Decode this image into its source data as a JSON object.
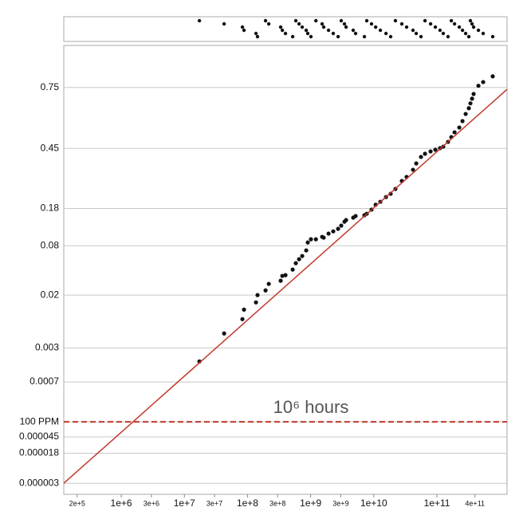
{
  "chart_data": {
    "type": "scatter",
    "xscale": "log",
    "yscale": "probit",
    "grid": true,
    "top_dotplot": true,
    "annotation": "10⁶ hours",
    "xlim": [
      123000,
      1290000000000
    ],
    "ylim": [
      1.5e-06,
      0.89
    ],
    "xticks": [
      {
        "value": 200000,
        "label": "2e+5"
      },
      {
        "value": 1000000,
        "label": "1e+6"
      },
      {
        "value": 3000000,
        "label": "3e+6"
      },
      {
        "value": 10000000,
        "label": "1e+7"
      },
      {
        "value": 30000000,
        "label": "3e+7"
      },
      {
        "value": 100000000,
        "label": "1e+8"
      },
      {
        "value": 300000000,
        "label": "3e+8"
      },
      {
        "value": 1000000000,
        "label": "1e+9"
      },
      {
        "value": 3000000000,
        "label": "3e+9"
      },
      {
        "value": 10000000000,
        "label": "1e+10"
      },
      {
        "value": 100000000000,
        "label": "1e+11"
      },
      {
        "value": 400000000000,
        "label": "4e+11"
      }
    ],
    "yticks": [
      0.75,
      0.45,
      0.18,
      0.08,
      0.02,
      0.003,
      0.0007,
      {
        "value": 0.0001,
        "label": "100 PPM"
      },
      4.5e-05,
      1.8e-05,
      3e-06
    ],
    "reference_lines": [
      {
        "value": 0.0001,
        "color": "#c0392b",
        "dashed": true
      }
    ],
    "series": [
      {
        "type": "scatter",
        "color": "#111111",
        "x": [
          17300000,
          42600000,
          83000000,
          88000000,
          136000000,
          144000000,
          193000000,
          217000000,
          335000000,
          356000000,
          399000000,
          519000000,
          582000000,
          655000000,
          735000000,
          850000000,
          900000000,
          1010000000,
          1210000000,
          1520000000,
          1610000000,
          1920000000,
          2280000000,
          2720000000,
          3050000000,
          3430000000,
          3640000000,
          4720000000,
          5150000000,
          7100000000,
          7740000000,
          9200000000,
          10700000000,
          12700000000,
          15600000000,
          18500000000,
          22000000000,
          27800000000,
          33100000000,
          41800000000,
          47000000000,
          55900000000,
          64700000000,
          79300000000,
          94400000000,
          112000000000,
          126000000000,
          150000000000,
          169000000000,
          190000000000,
          226000000000,
          254000000000,
          285000000000,
          320000000000,
          339000000000,
          360000000000,
          381000000000,
          454000000000,
          540000000000,
          765000000000
        ],
        "values": [
          0.00172,
          0.00527,
          0.0089,
          0.0124,
          0.0158,
          0.02,
          0.0232,
          0.0283,
          0.0311,
          0.0358,
          0.0366,
          0.0429,
          0.0511,
          0.0568,
          0.0618,
          0.0713,
          0.0866,
          0.0934,
          0.0934,
          0.0989,
          0.097,
          0.1064,
          0.112,
          0.1184,
          0.127,
          0.138,
          0.1428,
          0.15,
          0.155,
          0.1575,
          0.1625,
          0.176,
          0.193,
          0.204,
          0.222,
          0.235,
          0.255,
          0.29,
          0.308,
          0.342,
          0.373,
          0.406,
          0.422,
          0.434,
          0.443,
          0.451,
          0.459,
          0.484,
          0.509,
          0.534,
          0.559,
          0.592,
          0.628,
          0.656,
          0.679,
          0.701,
          0.722,
          0.757,
          0.772,
          0.794
        ]
      },
      {
        "type": "line",
        "color": "#c0392b",
        "x": [
          123000,
          1290000000000
        ],
        "values": [
          3e-06,
          0.742
        ]
      }
    ]
  }
}
